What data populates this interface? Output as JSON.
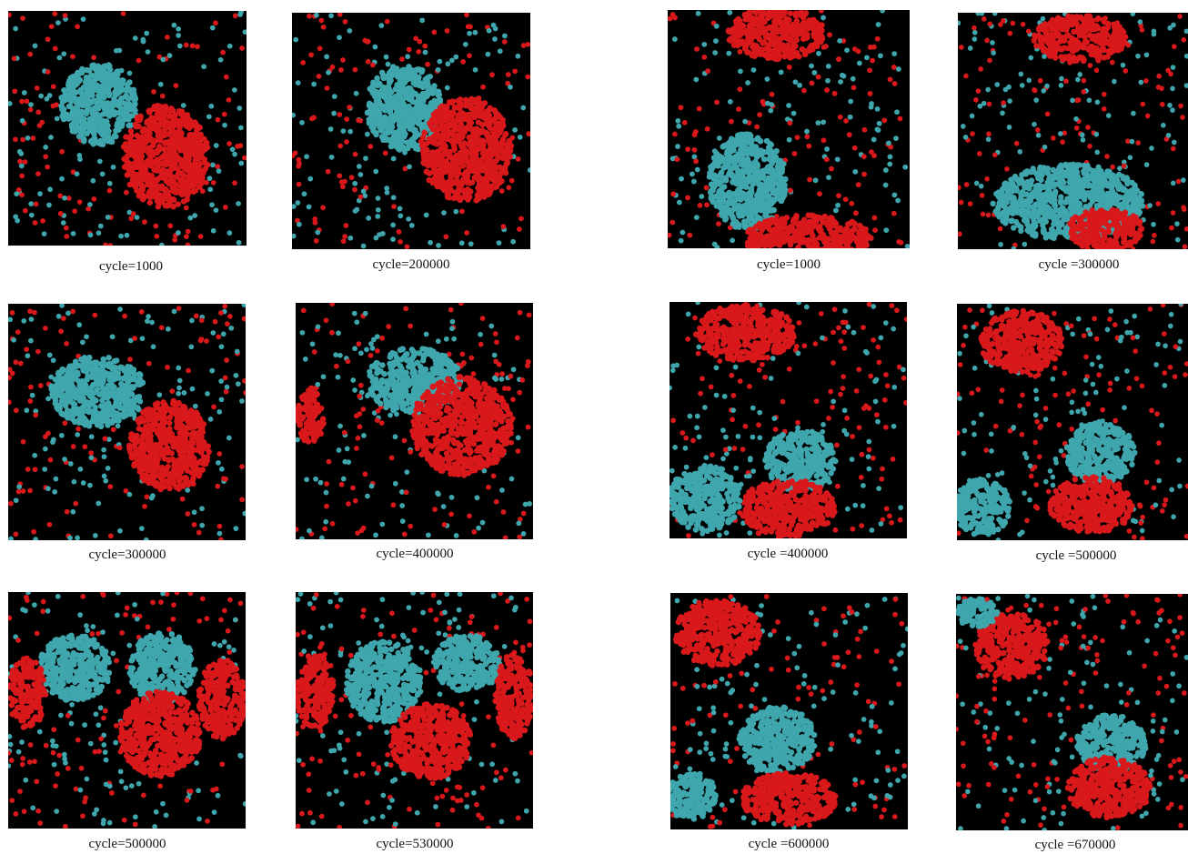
{
  "figure": {
    "colors": {
      "background": "#000000",
      "cyan": "#3fa6ad",
      "red": "#d8181a"
    },
    "panels": [
      {
        "caption": "cycle=1000"
      },
      {
        "caption": "cycle=200000"
      },
      {
        "caption": "cycle=1000"
      },
      {
        "caption": "cycle =300000"
      },
      {
        "caption": "cycle=300000"
      },
      {
        "caption": "cycle=400000"
      },
      {
        "caption": "cycle =400000"
      },
      {
        "caption": "cycle =500000"
      },
      {
        "caption": "cycle=500000"
      },
      {
        "caption": "cycle=530000"
      },
      {
        "caption": "cycle =600000"
      },
      {
        "caption": "cycle =670000"
      }
    ]
  }
}
